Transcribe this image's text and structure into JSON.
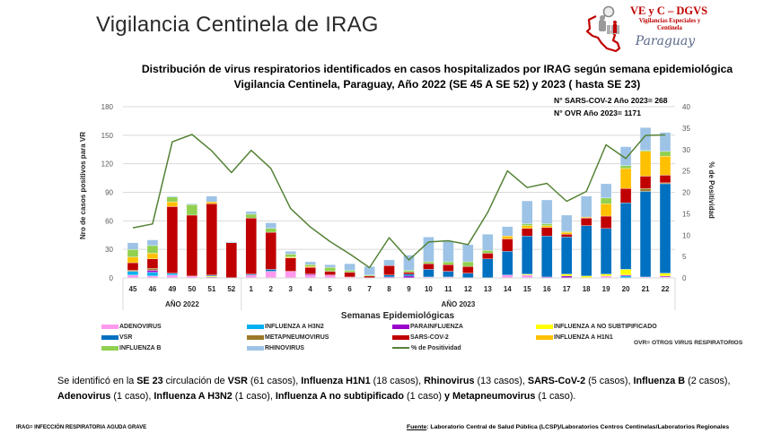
{
  "header": {
    "title": "Vigilancia Centinela de IRAG",
    "logo": {
      "line1": "VE y C – DGVS",
      "line2": "Vigilancias Especiales y",
      "line3": "Centinela",
      "script": "Paraguay"
    }
  },
  "chart_title": {
    "line1": "Distribución de virus respiratorios identificados en casos hospitalizados por IRAG según semana epidemiológica",
    "line2": "Vigilancia Centinela, Paraguay, Año 2022 (SE 45 A SE 52) y 2023 ( hasta SE 23)"
  },
  "annotations": [
    "N° SARS-COV-2 Año 2023= 268",
    "N° OVR Año 2023= 1171"
  ],
  "chart_data": {
    "type": "bar",
    "stacked": true,
    "title": "Distribución de virus respiratorios identificados en casos hospitalizados por IRAG según semana epidemiológica — Vigilancia Centinela, Paraguay, Año 2022 (SE 45 A SE 52) y 2023 ( hasta SE 23)",
    "xlabel": "Semanas Epidemiológicas",
    "ylabel": "Nro de casos positivos para VR",
    "y2label": "% de Positividad",
    "ylim": [
      0,
      180
    ],
    "yticks": [
      0,
      30,
      60,
      90,
      120,
      150,
      180
    ],
    "y2lim": [
      0,
      40
    ],
    "y2ticks": [
      0,
      5,
      10,
      15,
      20,
      25,
      30,
      35,
      40
    ],
    "grid": true,
    "legend_position": "bottom",
    "categories": [
      "45",
      "46",
      "49",
      "50",
      "51",
      "52",
      "1",
      "2",
      "3",
      "4",
      "5",
      "6",
      "7",
      "8",
      "9",
      "10",
      "11",
      "12",
      "13",
      "14",
      "15",
      "16",
      "17",
      "18",
      "19",
      "20",
      "21",
      "22"
    ],
    "groups": [
      {
        "label": "AÑO 2022",
        "count": 6
      },
      {
        "label": "AÑO 2023",
        "count": 22
      }
    ],
    "series": [
      {
        "name": "ADENOVIRUS",
        "color": "#FF99EE",
        "values": [
          3,
          2,
          3,
          2,
          0,
          0,
          3,
          7,
          7,
          3,
          3,
          1,
          0,
          0,
          0,
          1,
          1,
          0,
          0,
          3,
          3,
          0,
          0,
          0,
          2,
          0,
          1,
          1
        ]
      },
      {
        "name": "INFLUENZA A H3N2",
        "color": "#00B0F0",
        "values": [
          4,
          4,
          2,
          0,
          0,
          0,
          0,
          0,
          0,
          0,
          0,
          0,
          0,
          0,
          0,
          0,
          0,
          0,
          0,
          0,
          0,
          0,
          0,
          0,
          0,
          2,
          0,
          0
        ]
      },
      {
        "name": "PARAINFLUENZA",
        "color": "#9900CC",
        "values": [
          0,
          2,
          0,
          0,
          1,
          0,
          0,
          0,
          0,
          1,
          0,
          0,
          0,
          1,
          2,
          0,
          0,
          0,
          0,
          0,
          0,
          1,
          2,
          0,
          0,
          1,
          0,
          1
        ]
      },
      {
        "name": "INFLUENZA A NO SUBTIPIFICADO",
        "color": "#FFFF00",
        "values": [
          0,
          0,
          0,
          0,
          1,
          0,
          0,
          0,
          0,
          0,
          0,
          0,
          0,
          0,
          0,
          0,
          0,
          0,
          0,
          0,
          1,
          0,
          2,
          2,
          2,
          6,
          0,
          3
        ]
      },
      {
        "name": "VSR",
        "color": "#0070C0",
        "values": [
          0,
          0,
          0,
          0,
          1,
          0,
          1,
          2,
          0,
          0,
          0,
          0,
          0,
          2,
          2,
          8,
          6,
          5,
          20,
          25,
          40,
          43,
          39,
          53,
          48,
          70,
          90,
          94
        ]
      },
      {
        "name": "METAPNEUMOVIRUS",
        "color": "#9C7A2A",
        "values": [
          1,
          2,
          0,
          0,
          0,
          0,
          0,
          0,
          0,
          0,
          0,
          0,
          0,
          0,
          0,
          0,
          0,
          0,
          0,
          0,
          0,
          0,
          0,
          0,
          0,
          0,
          3,
          1
        ]
      },
      {
        "name": "SARS-COV-2",
        "color": "#C00000",
        "values": [
          8,
          10,
          70,
          64,
          75,
          37,
          59,
          39,
          14,
          7,
          4,
          5,
          2,
          10,
          2,
          6,
          7,
          7,
          6,
          13,
          8,
          9,
          3,
          8,
          13,
          15,
          13,
          8
        ]
      },
      {
        "name": "INFLUENZA A H1N1",
        "color": "#FFC000",
        "values": [
          6,
          6,
          5,
          0,
          2,
          0,
          0,
          0,
          1,
          1,
          0,
          0,
          0,
          0,
          0,
          0,
          0,
          0,
          0,
          3,
          3,
          2,
          2,
          1,
          13,
          21,
          26,
          20
        ]
      },
      {
        "name": "INFLUENZA B",
        "color": "#92D050",
        "values": [
          8,
          8,
          5,
          11,
          0,
          0,
          4,
          4,
          3,
          2,
          4,
          2,
          1,
          0,
          2,
          2,
          3,
          5,
          3,
          0,
          2,
          2,
          1,
          0,
          6,
          3,
          1,
          5
        ]
      },
      {
        "name": "RHINOVIRUS",
        "color": "#9DC3E6",
        "values": [
          7,
          6,
          1,
          1,
          6,
          1,
          3,
          6,
          3,
          3,
          3,
          7,
          9,
          6,
          16,
          26,
          22,
          18,
          17,
          10,
          24,
          25,
          17,
          22,
          15,
          20,
          24,
          20
        ]
      }
    ],
    "line_series": {
      "name": "% de Positividad",
      "color": "#548235",
      "axis": "right",
      "values": [
        11.7,
        12.6,
        31.8,
        33.5,
        29.7,
        24.6,
        29.8,
        25.6,
        16.2,
        11.9,
        8.5,
        5.6,
        2.4,
        9.4,
        4.2,
        8.4,
        8.7,
        7.8,
        15.3,
        25.0,
        21.1,
        22.1,
        17.9,
        20.2,
        31.1,
        27.9,
        33.3,
        33.4
      ]
    }
  },
  "legend_note": "OVR=  OTROS VIRUS RESPIRATORIOS",
  "summary": {
    "lines": [
      [
        {
          "text": "Se identificó en la ",
          "bold": false
        },
        {
          "text": "SE 23",
          "bold": true
        },
        {
          "text": " circulación de ",
          "bold": false
        },
        {
          "text": "VSR",
          "bold": true
        },
        {
          "text": " (61 casos), ",
          "bold": false
        },
        {
          "text": "Influenza H1N1",
          "bold": true
        },
        {
          "text": " (18 casos), ",
          "bold": false
        },
        {
          "text": "Rhinovirus",
          "bold": true
        },
        {
          "text": " (13 casos), ",
          "bold": false
        },
        {
          "text": "SARS-CoV-2",
          "bold": true
        },
        {
          "text": " (5 casos), ",
          "bold": false
        },
        {
          "text": "Influenza B",
          "bold": true
        },
        {
          "text": " (2 casos),",
          "bold": false
        }
      ],
      [
        {
          "text": "Adenovirus",
          "bold": true
        },
        {
          "text": " (1 caso), ",
          "bold": false
        },
        {
          "text": "Influenza A H3N2",
          "bold": true
        },
        {
          "text": " (1 caso), ",
          "bold": false
        },
        {
          "text": "Influenza A no subtipificado",
          "bold": true
        },
        {
          "text": " (1 caso) ",
          "bold": false
        },
        {
          "text": "y Metapneumovirus",
          "bold": true
        },
        {
          "text": " (1 caso).",
          "bold": false
        }
      ]
    ]
  },
  "footer": {
    "left": "IRAG= INFECCIÓN RESPIRATORIA AGUDA GRAVE",
    "source_label": "Fuente",
    "source_text": ": Laboratorio Central de Salud Pública (LCSP)/Laboratorios Centros Centinelas/Laboratorios Regionales"
  }
}
